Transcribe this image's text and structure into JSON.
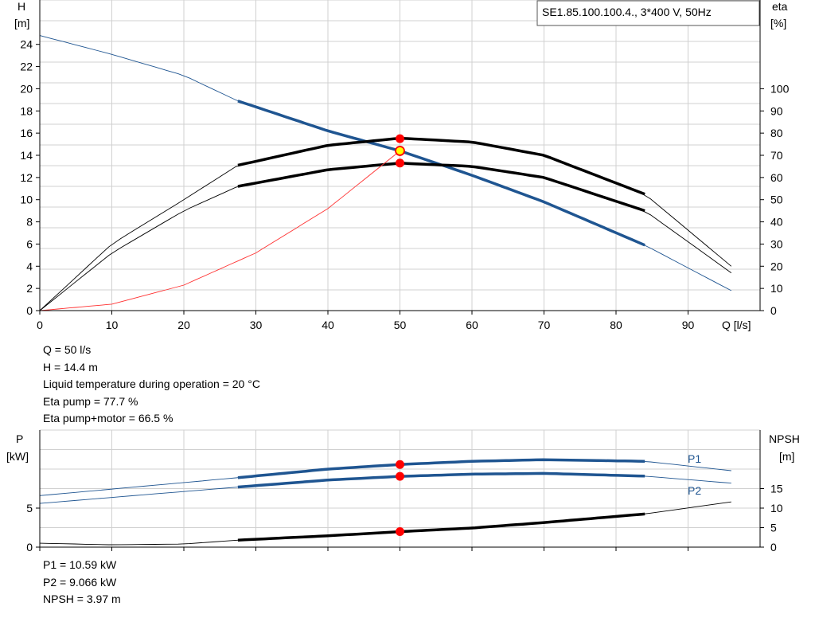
{
  "chart_data": [
    {
      "type": "line",
      "title": "SE1.85.100.100.4., 3*400 V, 50Hz",
      "xlabel": "Q [l/s]",
      "ylabel_left": "H",
      "ylabel_left_unit": "[m]",
      "ylabel_right": "eta",
      "ylabel_right_unit": "[%]",
      "xlim": [
        0,
        100
      ],
      "ylim_left": [
        0,
        28
      ],
      "ylim_right": [
        0,
        140
      ],
      "x_ticks": [
        0,
        10,
        20,
        30,
        40,
        50,
        60,
        70,
        80,
        90
      ],
      "y_left_ticks": [
        0,
        2,
        4,
        6,
        8,
        10,
        12,
        14,
        16,
        18,
        20,
        22,
        24
      ],
      "y_right_ticks": [
        0,
        10,
        20,
        30,
        40,
        50,
        60,
        70,
        80,
        90,
        100
      ],
      "grid": true,
      "legend": "none",
      "series": [
        {
          "color": "#1f5591",
          "axis": "left",
          "bold_range": [
            27.5,
            84
          ],
          "points": [
            [
              0,
              24.8
            ],
            [
              10,
              23.1
            ],
            [
              20,
              21.2
            ],
            [
              27.5,
              18.9
            ],
            [
              40,
              16.2
            ],
            [
              50,
              14.4
            ],
            [
              60,
              12.2
            ],
            [
              70,
              9.8
            ],
            [
              84,
              5.9
            ],
            [
              96,
              1.8
            ]
          ]
        },
        {
          "color": "#000000",
          "axis": "right",
          "bold_range": [
            27.5,
            84
          ],
          "points": [
            [
              0,
              0
            ],
            [
              10,
              30
            ],
            [
              20,
              50
            ],
            [
              27.5,
              65.5
            ],
            [
              40,
              74.5
            ],
            [
              50,
              77.7
            ],
            [
              60,
              76
            ],
            [
              70,
              70
            ],
            [
              84,
              52.5
            ],
            [
              96,
              20
            ]
          ]
        },
        {
          "color": "#000000",
          "axis": "right",
          "bold_range": [
            27.5,
            84
          ],
          "points": [
            [
              0,
              0
            ],
            [
              10,
              26
            ],
            [
              20,
              45
            ],
            [
              27.5,
              56
            ],
            [
              40,
              63.5
            ],
            [
              50,
              66.5
            ],
            [
              60,
              65
            ],
            [
              70,
              60
            ],
            [
              84,
              45
            ],
            [
              96,
              17
            ]
          ]
        },
        {
          "color": "#ff3030",
          "axis": "left",
          "bold_range": null,
          "points": [
            [
              0,
              0
            ],
            [
              10,
              0.58
            ],
            [
              20,
              2.3
            ],
            [
              30,
              5.2
            ],
            [
              40,
              9.2
            ],
            [
              50,
              14.4
            ]
          ]
        }
      ],
      "markers": [
        {
          "x": 50,
          "y": 15.5,
          "axis": "left",
          "fill": "#ff0000"
        },
        {
          "x": 50,
          "y": 13.3,
          "axis": "left",
          "fill": "#ff0000"
        },
        {
          "x": 50,
          "y": 14.4,
          "axis": "left",
          "fill": "#ffff00",
          "stroke": "#ff0000"
        }
      ]
    },
    {
      "type": "line",
      "ylabel_left": "P",
      "ylabel_left_unit": "[kW]",
      "ylabel_right": "NPSH",
      "ylabel_right_unit": "[m]",
      "xlim": [
        0,
        100
      ],
      "ylim_left": [
        0,
        15
      ],
      "ylim_right": [
        0,
        30
      ],
      "y_left_ticks": [
        0,
        5
      ],
      "y_right_ticks": [
        0,
        5,
        10,
        15
      ],
      "grid": true,
      "series": [
        {
          "name": "P1",
          "color": "#1f5591",
          "axis": "left",
          "bold_range": [
            27.5,
            84
          ],
          "points": [
            [
              0,
              6.6
            ],
            [
              27.5,
              8.9
            ],
            [
              40,
              10.0
            ],
            [
              50,
              10.59
            ],
            [
              60,
              11.0
            ],
            [
              70,
              11.2
            ],
            [
              84,
              11.0
            ],
            [
              96,
              9.8
            ]
          ]
        },
        {
          "name": "P2",
          "color": "#1f5591",
          "axis": "left",
          "bold_range": [
            27.5,
            84
          ],
          "points": [
            [
              0,
              5.6
            ],
            [
              27.5,
              7.7
            ],
            [
              40,
              8.6
            ],
            [
              50,
              9.066
            ],
            [
              60,
              9.35
            ],
            [
              70,
              9.45
            ],
            [
              84,
              9.1
            ],
            [
              96,
              8.2
            ]
          ]
        },
        {
          "color": "#000000",
          "axis": "right",
          "bold_range": [
            27.5,
            84
          ],
          "points": [
            [
              0,
              1
            ],
            [
              10,
              0.6
            ],
            [
              20,
              0.8
            ],
            [
              27.5,
              1.8
            ],
            [
              40,
              2.9
            ],
            [
              50,
              3.97
            ],
            [
              60,
              4.9
            ],
            [
              70,
              6.3
            ],
            [
              84,
              8.5
            ],
            [
              96,
              11.6
            ]
          ]
        }
      ],
      "markers": [
        {
          "x": 50,
          "y": 10.59,
          "axis": "left",
          "fill": "#ff0000"
        },
        {
          "x": 50,
          "y": 9.066,
          "axis": "left",
          "fill": "#ff0000"
        },
        {
          "x": 50,
          "y": 3.97,
          "axis": "right",
          "fill": "#ff0000"
        }
      ]
    }
  ],
  "info_top": {
    "line1": "Q = 50 l/s",
    "line2": "H = 14.4 m",
    "line3": "Liquid temperature during operation = 20 °C",
    "line4": "Eta pump = 77.7 %",
    "line5": "Eta pump+motor = 66.5 %"
  },
  "info_bottom": {
    "line1": "P1 = 10.59 kW",
    "line2": "P2 = 9.066 kW",
    "line3": "NPSH = 3.97 m"
  }
}
